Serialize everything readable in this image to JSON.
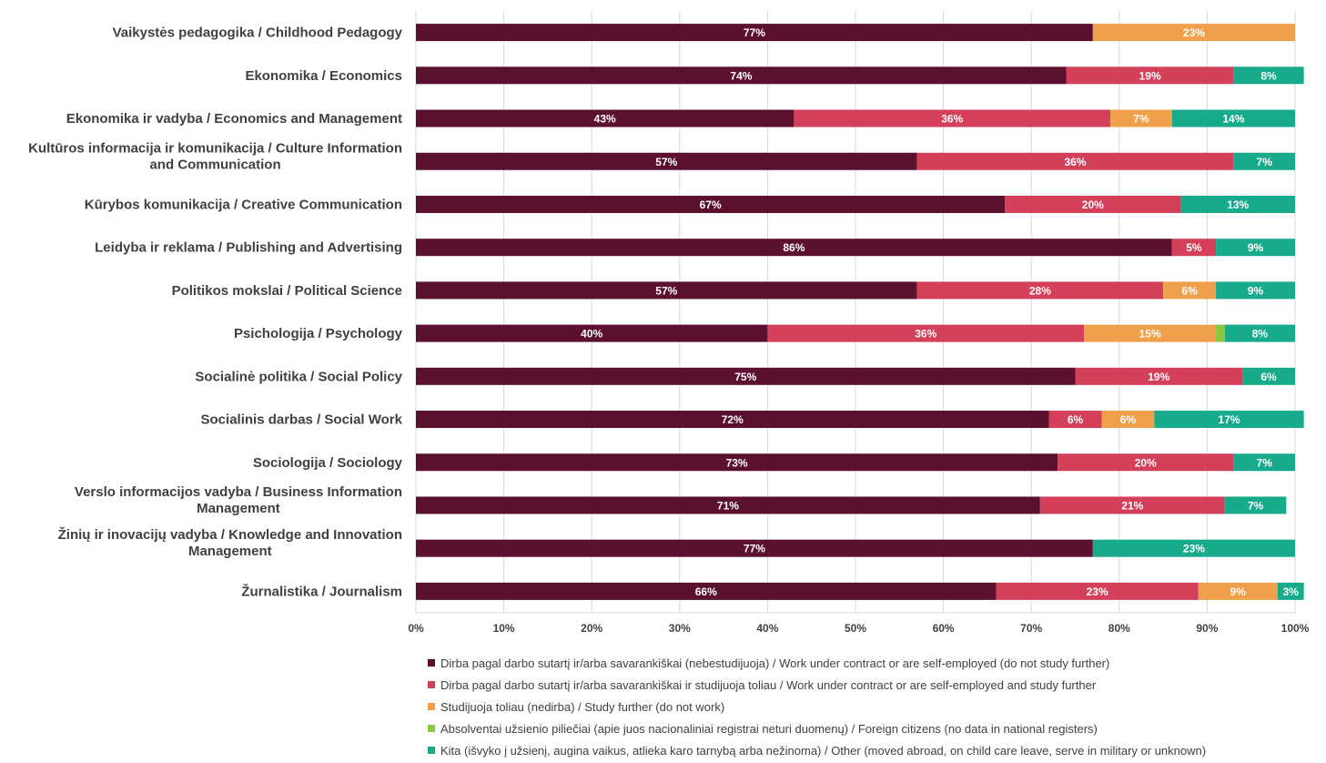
{
  "chart_data": {
    "type": "bar",
    "orientation": "horizontal",
    "stacked": "percent",
    "categories": [
      "Vaikystės pedagogika / Childhood Pedagogy",
      "Ekonomika / Economics",
      "Ekonomika ir vadyba / Economics and Management",
      "Kultūros informacija ir komunikacija / Culture Information and Communication",
      "Kūrybos komunikacija / Creative Communication",
      "Leidyba ir reklama / Publishing and Advertising",
      "Politikos mokslai / Political Science",
      "Psichologija / Psychology",
      "Socialinė politika / Social Policy",
      "Socialinis darbas / Social Work",
      "Sociologija / Sociology",
      "Verslo informacijos vadyba / Business Information Management",
      "Žinių ir inovacijų vadyba / Knowledge and Innovation Management",
      "Žurnalistika / Journalism"
    ],
    "category_lines": [
      [
        "Vaikystės pedagogika / Childhood Pedagogy"
      ],
      [
        "Ekonomika / Economics"
      ],
      [
        "Ekonomika ir vadyba / Economics and Management"
      ],
      [
        "Kultūros informacija ir komunikacija / Culture Information",
        "and Communication"
      ],
      [
        "Kūrybos komunikacija / Creative Communication"
      ],
      [
        "Leidyba ir reklama / Publishing and Advertising"
      ],
      [
        "Politikos mokslai / Political Science"
      ],
      [
        "Psichologija / Psychology"
      ],
      [
        "Socialinė politika / Social Policy"
      ],
      [
        "Socialinis darbas / Social Work"
      ],
      [
        "Sociologija / Sociology"
      ],
      [
        "Verslo informacijos vadyba / Business Information",
        "Management"
      ],
      [
        "Žinių ir inovacijų vadyba / Knowledge and Innovation",
        "Management"
      ],
      [
        "Žurnalistika / Journalism"
      ]
    ],
    "series": [
      {
        "name": "Dirba pagal darbo sutartį ir/arba savarankiškai (nebestudijuoja) / Work under contract or are self-employed (do not study further)",
        "color": "#5c1030",
        "values": [
          77,
          74,
          43,
          57,
          67,
          86,
          57,
          40,
          75,
          72,
          73,
          71,
          77,
          66
        ]
      },
      {
        "name": "Dirba pagal darbo sutartį ir/arba savarankiškai  ir studijuoja toliau / Work under contract or are self-employed and study further",
        "color": "#d43f5a",
        "values": [
          0,
          19,
          36,
          36,
          20,
          5,
          28,
          36,
          19,
          6,
          20,
          21,
          0,
          23
        ]
      },
      {
        "name": "Studijuoja toliau (nedirba) / Study further (do not work)",
        "color": "#f0a04b",
        "values": [
          23,
          0,
          7,
          0,
          0,
          0,
          6,
          15,
          0,
          6,
          0,
          0,
          0,
          9
        ]
      },
      {
        "name": "Absolventai užsienio piliečiai (apie juos nacionaliniai registrai neturi duomenų) / Foreign citizens (no data in national registers)",
        "color": "#8cc63f",
        "values": [
          0,
          0,
          0,
          0,
          0,
          0,
          0,
          1,
          0,
          0,
          0,
          0,
          0,
          0
        ]
      },
      {
        "name": "Kita (išvyko į užsienį, augina vaikus, atlieka karo tarnybą arba nežinoma) / Other (moved abroad, on child care leave, serve in military or unknown)",
        "color": "#17ab8c",
        "values": [
          0,
          8,
          14,
          7,
          13,
          9,
          9,
          8,
          6,
          17,
          7,
          7,
          23,
          3
        ]
      }
    ],
    "xlim": [
      0,
      100
    ],
    "x_ticks": [
      "0%",
      "10%",
      "20%",
      "30%",
      "40%",
      "50%",
      "60%",
      "70%",
      "80%",
      "90%",
      "100%"
    ],
    "value_suffix": "%",
    "grid": true,
    "legend_position": "bottom",
    "title": "",
    "xlabel": "",
    "ylabel": ""
  }
}
